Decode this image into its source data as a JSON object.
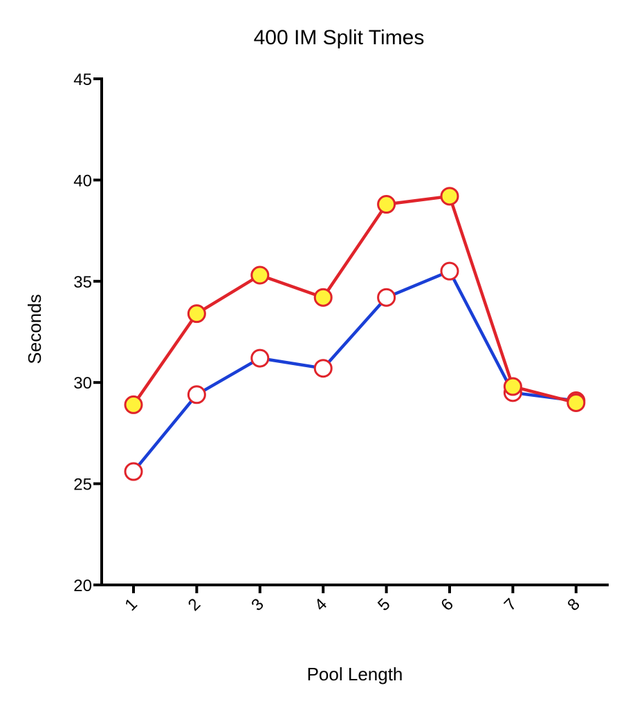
{
  "chart_data": {
    "type": "line",
    "title": "400 IM Split Times",
    "xlabel": "Pool Length",
    "ylabel": "Seconds",
    "categories": [
      "1",
      "2",
      "3",
      "4",
      "5",
      "6",
      "7",
      "8"
    ],
    "ylim": [
      20,
      45
    ],
    "yticks": [
      "20",
      "25",
      "30",
      "35",
      "40",
      "45"
    ],
    "grid": false,
    "legend": "none",
    "series": [
      {
        "values": [
          25.6,
          29.4,
          31.2,
          30.7,
          34.2,
          35.5,
          29.5,
          29.1
        ],
        "line_color": "#1a3fd6",
        "marker_fill": "#ffffff",
        "marker_edge": "#e0242b"
      },
      {
        "values": [
          28.9,
          33.4,
          35.3,
          34.2,
          38.8,
          39.2,
          29.8,
          29.0
        ],
        "line_color": "#e0242b",
        "marker_fill": "#fff23a",
        "marker_edge": "#e0242b"
      }
    ]
  }
}
